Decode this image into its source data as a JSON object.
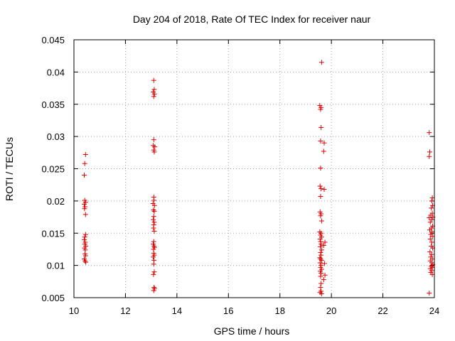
{
  "chart_data": {
    "type": "scatter",
    "title": "Day 204 of 2018, Rate Of TEC Index for receiver naur",
    "xlabel": "GPS time / hours",
    "ylabel": "ROTI / TECUs",
    "xlim": [
      10,
      24
    ],
    "ylim": [
      0.005,
      0.045
    ],
    "xticks": [
      "10",
      "12",
      "14",
      "16",
      "18",
      "20",
      "22",
      "24"
    ],
    "yticks": [
      "0.005",
      "0.01",
      "0.015",
      "0.02",
      "0.025",
      "0.03",
      "0.035",
      "0.04",
      "0.045"
    ],
    "grid": true,
    "marker": "+",
    "color": "#e00000",
    "series": [
      {
        "name": "ROTI",
        "points": [
          [
            10.45,
            0.0272
          ],
          [
            10.42,
            0.0258
          ],
          [
            10.4,
            0.024
          ],
          [
            10.42,
            0.0201
          ],
          [
            10.45,
            0.0198
          ],
          [
            10.4,
            0.0195
          ],
          [
            10.43,
            0.0191
          ],
          [
            10.41,
            0.0188
          ],
          [
            10.45,
            0.0179
          ],
          [
            10.45,
            0.0148
          ],
          [
            10.42,
            0.0144
          ],
          [
            10.4,
            0.014
          ],
          [
            10.44,
            0.0136
          ],
          [
            10.42,
            0.0133
          ],
          [
            10.46,
            0.013
          ],
          [
            10.41,
            0.0127
          ],
          [
            10.44,
            0.0124
          ],
          [
            10.43,
            0.0118
          ],
          [
            10.45,
            0.0115
          ],
          [
            10.4,
            0.011
          ],
          [
            10.43,
            0.0107
          ],
          [
            10.46,
            0.0105
          ],
          [
            13.1,
            0.0387
          ],
          [
            13.12,
            0.0373
          ],
          [
            13.08,
            0.0369
          ],
          [
            13.13,
            0.0366
          ],
          [
            13.1,
            0.0362
          ],
          [
            13.1,
            0.0295
          ],
          [
            13.08,
            0.0286
          ],
          [
            13.14,
            0.0284
          ],
          [
            13.1,
            0.0279
          ],
          [
            13.12,
            0.0276
          ],
          [
            13.1,
            0.0206
          ],
          [
            13.11,
            0.0201
          ],
          [
            13.07,
            0.0196
          ],
          [
            13.13,
            0.0193
          ],
          [
            13.09,
            0.0186
          ],
          [
            13.12,
            0.0184
          ],
          [
            13.1,
            0.0176
          ],
          [
            13.08,
            0.0171
          ],
          [
            13.12,
            0.0167
          ],
          [
            13.1,
            0.0163
          ],
          [
            13.09,
            0.0158
          ],
          [
            13.12,
            0.0153
          ],
          [
            13.1,
            0.0137
          ],
          [
            13.08,
            0.0133
          ],
          [
            13.11,
            0.013
          ],
          [
            13.13,
            0.0128
          ],
          [
            13.09,
            0.0125
          ],
          [
            13.1,
            0.0119
          ],
          [
            13.12,
            0.0116
          ],
          [
            13.08,
            0.0113
          ],
          [
            13.11,
            0.0108
          ],
          [
            13.1,
            0.0102
          ],
          [
            13.12,
            0.009
          ],
          [
            13.09,
            0.0086
          ],
          [
            13.11,
            0.0066
          ],
          [
            13.13,
            0.0064
          ],
          [
            13.1,
            0.0061
          ],
          [
            19.62,
            0.0415
          ],
          [
            19.55,
            0.0348
          ],
          [
            19.6,
            0.0345
          ],
          [
            19.58,
            0.0342
          ],
          [
            19.6,
            0.0314
          ],
          [
            19.58,
            0.0293
          ],
          [
            19.72,
            0.029
          ],
          [
            19.7,
            0.0277
          ],
          [
            19.58,
            0.0251
          ],
          [
            19.56,
            0.0223
          ],
          [
            19.6,
            0.0219
          ],
          [
            19.72,
            0.0218
          ],
          [
            19.58,
            0.0207
          ],
          [
            19.56,
            0.0183
          ],
          [
            19.6,
            0.018
          ],
          [
            19.58,
            0.0177
          ],
          [
            19.62,
            0.0169
          ],
          [
            19.55,
            0.0152
          ],
          [
            19.6,
            0.015
          ],
          [
            19.58,
            0.0147
          ],
          [
            19.62,
            0.0144
          ],
          [
            19.56,
            0.0141
          ],
          [
            19.58,
            0.0137
          ],
          [
            19.75,
            0.0136
          ],
          [
            19.6,
            0.0133
          ],
          [
            19.7,
            0.0131
          ],
          [
            19.57,
            0.0129
          ],
          [
            19.62,
            0.0124
          ],
          [
            19.58,
            0.012
          ],
          [
            19.6,
            0.0116
          ],
          [
            19.55,
            0.0112
          ],
          [
            19.58,
            0.011
          ],
          [
            19.62,
            0.0108
          ],
          [
            19.56,
            0.0104
          ],
          [
            19.73,
            0.0103
          ],
          [
            19.6,
            0.01
          ],
          [
            19.58,
            0.0097
          ],
          [
            19.62,
            0.0094
          ],
          [
            19.57,
            0.0091
          ],
          [
            19.6,
            0.0088
          ],
          [
            19.75,
            0.0085
          ],
          [
            19.58,
            0.0083
          ],
          [
            19.7,
            0.0078
          ],
          [
            19.6,
            0.0072
          ],
          [
            19.58,
            0.0066
          ],
          [
            19.6,
            0.006
          ],
          [
            19.56,
            0.0058
          ],
          [
            19.62,
            0.0056
          ],
          [
            23.8,
            0.0306
          ],
          [
            23.82,
            0.0276
          ],
          [
            23.8,
            0.0269
          ],
          [
            23.92,
            0.0205
          ],
          [
            23.9,
            0.02
          ],
          [
            23.93,
            0.0193
          ],
          [
            23.88,
            0.0189
          ],
          [
            23.92,
            0.0181
          ],
          [
            23.86,
            0.0178
          ],
          [
            23.94,
            0.0175
          ],
          [
            23.8,
            0.0174
          ],
          [
            23.9,
            0.0171
          ],
          [
            23.84,
            0.0167
          ],
          [
            23.93,
            0.0161
          ],
          [
            23.88,
            0.0158
          ],
          [
            23.82,
            0.0155
          ],
          [
            23.91,
            0.0152
          ],
          [
            23.86,
            0.0148
          ],
          [
            23.92,
            0.0145
          ],
          [
            23.84,
            0.0141
          ],
          [
            23.9,
            0.0136
          ],
          [
            23.88,
            0.013
          ],
          [
            23.93,
            0.0127
          ],
          [
            23.83,
            0.0121
          ],
          [
            23.9,
            0.0117
          ],
          [
            23.86,
            0.0113
          ],
          [
            23.92,
            0.011
          ],
          [
            23.84,
            0.0107
          ],
          [
            23.9,
            0.0104
          ],
          [
            23.94,
            0.0101
          ],
          [
            23.88,
            0.0099
          ],
          [
            23.92,
            0.0097
          ],
          [
            23.84,
            0.0095
          ],
          [
            23.9,
            0.0092
          ],
          [
            23.86,
            0.0089
          ],
          [
            23.92,
            0.0086
          ],
          [
            23.8,
            0.0057
          ]
        ]
      }
    ]
  }
}
